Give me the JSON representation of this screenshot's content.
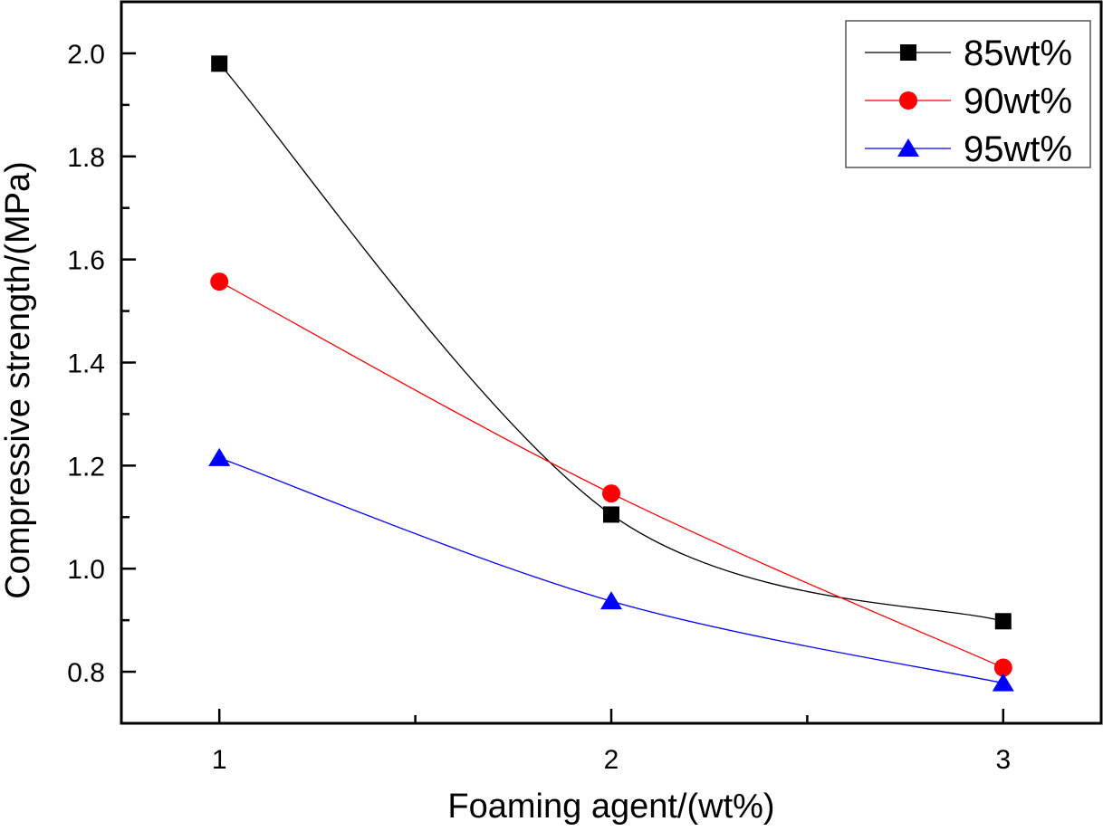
{
  "chart_data": {
    "type": "line",
    "title": "",
    "xlabel": "Foaming agent/(wt%)",
    "ylabel": "Compressive strength/(MPa)",
    "x": [
      1,
      2,
      3
    ],
    "xlim": [
      0.75,
      3.25
    ],
    "ylim": [
      0.7,
      2.1
    ],
    "xticks": [
      1,
      2,
      3
    ],
    "xtick_labels": [
      "1",
      "2",
      "3"
    ],
    "xminor": [
      1.5,
      2.5
    ],
    "yticks": [
      0.8,
      1.0,
      1.2,
      1.4,
      1.6,
      1.8,
      2.0
    ],
    "ytick_labels": [
      "0.8",
      "1.0",
      "1.2",
      "1.4",
      "1.6",
      "1.8",
      "2.0"
    ],
    "yminor": [
      0.9,
      1.1,
      1.3,
      1.5,
      1.7,
      1.9
    ],
    "grid": false,
    "legend_position": "top-right",
    "series": [
      {
        "name": "85wt%",
        "values": [
          1.98,
          1.105,
          0.898
        ],
        "color": "#000000",
        "marker": "square",
        "smooth": true
      },
      {
        "name": "90wt%",
        "values": [
          1.557,
          1.146,
          0.808
        ],
        "color": "#ff0000",
        "marker": "circle",
        "smooth": true
      },
      {
        "name": "95wt%",
        "values": [
          1.215,
          0.937,
          0.778
        ],
        "color": "#0000ff",
        "marker": "triangle",
        "smooth": true
      }
    ]
  }
}
